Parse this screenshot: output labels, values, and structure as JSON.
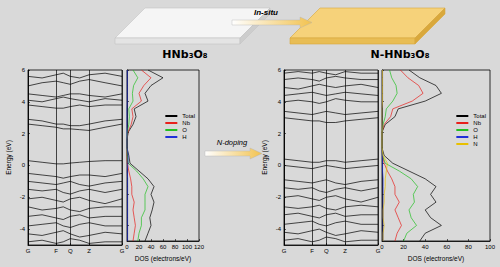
{
  "illustration": {
    "left_label": "HNb₃O₈",
    "arrow_label": "In-situ",
    "right_label": "N-HNb₃O₈",
    "doping_label": "N-doping"
  },
  "chart_data": [
    {
      "type": "line",
      "ylabel": "Energy (eV)",
      "color": "#000000",
      "grid": "x",
      "x": [
        0,
        0.15,
        0.3,
        0.375,
        0.45,
        0.55,
        0.65,
        0.82,
        1
      ],
      "xlim": [
        0,
        1
      ],
      "xticks": [
        {
          "value": 0,
          "label": "G"
        },
        {
          "value": 0.3,
          "label": "F"
        },
        {
          "value": 0.45,
          "label": "Q"
        },
        {
          "value": 0.65,
          "label": "Z"
        },
        {
          "value": 1,
          "label": "G"
        }
      ],
      "ylim": [
        -5,
        6
      ],
      "yticks": [
        -4,
        -2,
        0,
        2,
        4,
        6
      ],
      "series": [
        {
          "values": [
            2.6,
            2.5,
            2.4,
            2.3,
            2.3,
            2.25,
            2.2,
            2.4,
            2.6
          ]
        },
        {
          "values": [
            2.9,
            2.8,
            2.6,
            2.6,
            2.5,
            2.5,
            2.6,
            2.8,
            2.9
          ]
        },
        {
          "values": [
            3.8,
            3.7,
            3.6,
            3.6,
            3.7,
            3.8,
            3.7,
            3.8,
            3.8
          ]
        },
        {
          "values": [
            4.1,
            4.0,
            4.2,
            4.3,
            4.2,
            4.1,
            4.0,
            4.2,
            4.1
          ]
        },
        {
          "values": [
            4.5,
            4.4,
            4.3,
            4.4,
            4.5,
            4.5,
            4.4,
            4.3,
            4.5
          ]
        },
        {
          "values": [
            5.0,
            5.2,
            5.3,
            5.2,
            5.1,
            5.3,
            5.4,
            5.2,
            5.0
          ]
        },
        {
          "values": [
            5.6,
            5.5,
            5.7,
            5.8,
            5.6,
            5.5,
            5.7,
            5.8,
            5.6
          ]
        },
        {
          "values": [
            0.3,
            0.2,
            0.1,
            0.1,
            0.15,
            0.2,
            0.25,
            0.3,
            0.3
          ]
        },
        {
          "values": [
            -0.5,
            -0.6,
            -0.7,
            -0.8,
            -0.7,
            -0.6,
            -0.6,
            -0.7,
            -0.5
          ]
        },
        {
          "values": [
            -1.0,
            -1.1,
            -1.2,
            -1.1,
            -1.0,
            -1.2,
            -1.3,
            -1.1,
            -1.0
          ]
        },
        {
          "values": [
            -1.5,
            -1.6,
            -1.5,
            -1.7,
            -1.8,
            -1.6,
            -1.5,
            -1.7,
            -1.5
          ]
        },
        {
          "values": [
            -2.1,
            -2.0,
            -2.2,
            -2.3,
            -2.1,
            -2.0,
            -2.2,
            -2.4,
            -2.1
          ]
        },
        {
          "values": [
            -2.6,
            -2.8,
            -2.7,
            -2.6,
            -2.8,
            -2.9,
            -2.7,
            -2.6,
            -2.6
          ]
        },
        {
          "values": [
            -3.2,
            -3.1,
            -3.3,
            -3.4,
            -3.2,
            -3.1,
            -3.3,
            -3.2,
            -3.2
          ]
        },
        {
          "values": [
            -3.8,
            -3.7,
            -3.6,
            -3.8,
            -3.9,
            -3.7,
            -3.6,
            -3.8,
            -3.8
          ]
        },
        {
          "values": [
            -4.3,
            -4.4,
            -4.2,
            -4.1,
            -4.3,
            -4.5,
            -4.4,
            -4.2,
            -4.3
          ]
        },
        {
          "values": [
            -4.8,
            -4.7,
            -4.9,
            -4.8,
            -4.6,
            -4.7,
            -4.9,
            -4.8,
            -4.8
          ]
        }
      ]
    },
    {
      "type": "line",
      "orientation": "horizontal",
      "xlabel": "DOS (electrons/eV)",
      "legend": "right",
      "tick_labels": "x",
      "y": [
        -5,
        -4.5,
        -4,
        -3.5,
        -3,
        -2.5,
        -2,
        -1.5,
        -1,
        -0.5,
        0,
        0.5,
        1,
        1.5,
        2,
        2.5,
        3,
        3.5,
        4,
        4.5,
        5,
        5.5,
        6
      ],
      "xlim": [
        0,
        120
      ],
      "xticks": [
        0,
        20,
        40,
        60,
        80,
        100,
        120
      ],
      "ylim": [
        -5,
        6
      ],
      "yticks": [
        -4,
        -2,
        0,
        2,
        4,
        6
      ],
      "series": [
        {
          "name": "Total",
          "color": "#000000",
          "values": [
            30,
            35,
            40,
            38,
            42,
            45,
            40,
            45,
            35,
            20,
            5,
            3,
            0,
            0,
            2,
            10,
            15,
            12,
            35,
            30,
            40,
            60,
            35
          ]
        },
        {
          "name": "Nb",
          "color": "#e8201c",
          "values": [
            10,
            12,
            14,
            12,
            10,
            12,
            8,
            8,
            6,
            3,
            0.5,
            0,
            0,
            0,
            1.5,
            7,
            10,
            8,
            24,
            20,
            28,
            40,
            24
          ]
        },
        {
          "name": "O",
          "color": "#22c022",
          "values": [
            18,
            20,
            24,
            24,
            30,
            30,
            30,
            35,
            27,
            16,
            2,
            0.5,
            0,
            0,
            0.5,
            3,
            4,
            3,
            10,
            9,
            11,
            18,
            10
          ]
        },
        {
          "name": "H",
          "color": "#1f2fd8",
          "values": [
            1,
            1,
            1,
            1,
            1,
            1,
            1,
            1,
            1,
            0.5,
            1.5,
            2,
            0,
            0,
            0,
            0,
            0,
            0,
            0.5,
            0.5,
            0.5,
            0.5,
            0.5
          ]
        }
      ]
    },
    {
      "type": "line",
      "ylabel": "Energy (eV)",
      "color": "#000000",
      "grid": "x",
      "x": [
        0,
        0.15,
        0.3,
        0.375,
        0.45,
        0.55,
        0.65,
        0.82,
        1
      ],
      "xlim": [
        0,
        1
      ],
      "xticks": [
        {
          "value": 0,
          "label": "G"
        },
        {
          "value": 0.3,
          "label": "F"
        },
        {
          "value": 0.45,
          "label": "Q"
        },
        {
          "value": 0.65,
          "label": "Z"
        },
        {
          "value": 1,
          "label": "G"
        }
      ],
      "ylim": [
        -5,
        6
      ],
      "yticks": [
        -4,
        -2,
        0,
        2,
        4,
        6
      ],
      "series": [
        {
          "values": [
            3.0,
            2.9,
            2.8,
            2.8,
            2.7,
            2.7,
            2.8,
            2.9,
            3.0
          ]
        },
        {
          "values": [
            3.4,
            3.3,
            3.2,
            3.3,
            3.4,
            3.3,
            3.2,
            3.3,
            3.4
          ]
        },
        {
          "values": [
            4.0,
            4.1,
            4.0,
            3.9,
            4.0,
            4.2,
            4.1,
            4.0,
            4.0
          ]
        },
        {
          "values": [
            4.4,
            4.5,
            4.6,
            4.5,
            4.4,
            4.5,
            4.6,
            4.5,
            4.4
          ]
        },
        {
          "values": [
            4.9,
            4.8,
            5.0,
            5.1,
            5.0,
            4.9,
            5.0,
            5.1,
            4.9
          ]
        },
        {
          "values": [
            5.4,
            5.5,
            5.4,
            5.3,
            5.5,
            5.6,
            5.5,
            5.4,
            5.4
          ]
        },
        {
          "values": [
            5.8,
            5.9,
            5.8,
            5.9,
            5.8,
            5.7,
            5.9,
            5.8,
            5.8
          ]
        },
        {
          "values": [
            0.4,
            0.3,
            0.2,
            0.2,
            0.3,
            0.3,
            0.2,
            0.3,
            0.4
          ]
        },
        {
          "values": [
            0.0,
            -0.1,
            -0.2,
            -0.1,
            0.0,
            -0.1,
            -0.2,
            -0.1,
            0.0
          ]
        },
        {
          "values": [
            -0.9,
            -1.0,
            -1.1,
            -1.0,
            -0.9,
            -1.1,
            -1.2,
            -1.0,
            -0.9
          ]
        },
        {
          "values": [
            -1.4,
            -1.5,
            -1.4,
            -1.6,
            -1.7,
            -1.5,
            -1.4,
            -1.6,
            -1.4
          ]
        },
        {
          "values": [
            -2.0,
            -1.9,
            -2.1,
            -2.2,
            -2.0,
            -1.9,
            -2.1,
            -2.3,
            -2.0
          ]
        },
        {
          "values": [
            -2.6,
            -2.7,
            -2.6,
            -2.5,
            -2.7,
            -2.8,
            -2.6,
            -2.5,
            -2.6
          ]
        },
        {
          "values": [
            -3.1,
            -3.0,
            -3.2,
            -3.3,
            -3.1,
            -3.0,
            -3.2,
            -3.1,
            -3.1
          ]
        },
        {
          "values": [
            -3.7,
            -3.6,
            -3.5,
            -3.7,
            -3.8,
            -3.6,
            -3.5,
            -3.7,
            -3.7
          ]
        },
        {
          "values": [
            -4.2,
            -4.3,
            -4.1,
            -4.0,
            -4.2,
            -4.4,
            -4.3,
            -4.1,
            -4.2
          ]
        },
        {
          "values": [
            -4.7,
            -4.6,
            -4.8,
            -4.7,
            -4.5,
            -4.6,
            -4.8,
            -4.7,
            -4.7
          ]
        }
      ]
    },
    {
      "type": "line",
      "orientation": "horizontal",
      "xlabel": "DOS (electrons/eV)",
      "legend": "right",
      "tick_labels": "x",
      "y": [
        -5,
        -4.5,
        -4,
        -3.5,
        -3,
        -2.5,
        -2,
        -1.5,
        -1,
        -0.5,
        0,
        0.5,
        1,
        1.5,
        2,
        2.5,
        3,
        3.5,
        4,
        4.5,
        5,
        5.5,
        6
      ],
      "xlim": [
        0,
        100
      ],
      "xticks": [
        0,
        20,
        40,
        60,
        80,
        100
      ],
      "ylim": [
        -5,
        6
      ],
      "yticks": [
        -4,
        -2,
        0,
        2,
        4,
        6
      ],
      "series": [
        {
          "name": "Total",
          "color": "#000000",
          "values": [
            35,
            40,
            55,
            45,
            40,
            50,
            45,
            50,
            40,
            25,
            10,
            2,
            0,
            0,
            0,
            3,
            12,
            15,
            40,
            55,
            50,
            35,
            25
          ]
        },
        {
          "name": "Nb",
          "color": "#e8201c",
          "values": [
            12,
            14,
            18,
            15,
            12,
            16,
            12,
            12,
            9,
            5,
            2,
            0.5,
            0,
            0,
            0,
            2,
            8,
            10,
            28,
            38,
            34,
            24,
            17
          ]
        },
        {
          "name": "O",
          "color": "#22c022",
          "values": [
            20,
            23,
            32,
            27,
            25,
            30,
            29,
            33,
            27,
            16,
            3,
            0.5,
            0,
            0,
            0,
            1,
            3,
            4,
            10,
            14,
            13,
            9,
            7
          ]
        },
        {
          "name": "H",
          "color": "#1f2fd8",
          "values": [
            1,
            1,
            1,
            1,
            1,
            1,
            1,
            1,
            1,
            0.5,
            0.5,
            0.3,
            0,
            0,
            0,
            0,
            0,
            0,
            0.5,
            0.5,
            0.5,
            0.5,
            0.5
          ]
        },
        {
          "name": "N",
          "color": "#e8c000",
          "values": [
            1,
            1,
            2,
            1,
            1,
            2,
            2,
            3,
            3,
            4,
            5,
            1,
            0,
            0,
            0,
            0,
            0,
            0,
            0.5,
            0.5,
            0.5,
            0.5,
            0.5
          ]
        }
      ]
    }
  ]
}
